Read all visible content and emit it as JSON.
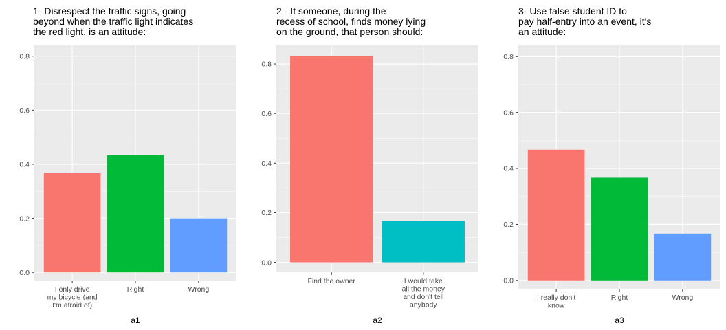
{
  "chart_data": [
    {
      "type": "bar",
      "title_lines": [
        "1- Disrespect the traffic signs, going",
        "beyond when the traffic light indicates",
        "the red light, is an attitude:"
      ],
      "xlabel": "a1",
      "ylabel": "",
      "categories": [
        [
          "I only drive",
          "my bicycle (and",
          "I'm afraid of)"
        ],
        [
          "Right"
        ],
        [
          "Wrong"
        ]
      ],
      "values": [
        0.367,
        0.433,
        0.2
      ],
      "colors": [
        "#F8766D",
        "#00BA38",
        "#619CFF"
      ],
      "ylim": [
        -0.03,
        0.84
      ],
      "yticks": [
        0.0,
        0.2,
        0.4,
        0.6,
        0.8
      ],
      "ytick_labels": [
        "0.0",
        "0.2",
        "0.4",
        "0.6",
        "0.8"
      ],
      "grid": true,
      "background": "#EBEBEB"
    },
    {
      "type": "bar",
      "title_lines": [
        "2 - If someone, during the",
        "recess of school, finds money lying",
        "on the ground, that person should:"
      ],
      "xlabel": "a2",
      "ylabel": "",
      "categories": [
        [
          "Find the owner"
        ],
        [
          "I would take",
          "all the money",
          "and don't tell",
          "anybody"
        ]
      ],
      "values": [
        0.833,
        0.167
      ],
      "colors": [
        "#F8766D",
        "#00BFC4"
      ],
      "ylim": [
        -0.04,
        0.875
      ],
      "yticks": [
        0.0,
        0.2,
        0.4,
        0.6,
        0.8
      ],
      "ytick_labels": [
        "0.0",
        "0.2",
        "0.4",
        "0.6",
        "0.8"
      ],
      "grid": true,
      "background": "#EBEBEB"
    },
    {
      "type": "bar",
      "title_lines": [
        "3- Use false student ID to",
        "pay half-entry into an event, it's",
        "an attitude:"
      ],
      "xlabel": "a3",
      "ylabel": "",
      "categories": [
        [
          "I really don't",
          "know"
        ],
        [
          "Right"
        ],
        [
          "Wrong"
        ]
      ],
      "values": [
        0.467,
        0.367,
        0.167
      ],
      "colors": [
        "#F8766D",
        "#00BA38",
        "#619CFF"
      ],
      "ylim": [
        -0.03,
        0.84
      ],
      "yticks": [
        0.0,
        0.2,
        0.4,
        0.6,
        0.8
      ],
      "ytick_labels": [
        "0.0",
        "0.2",
        "0.4",
        "0.6",
        "0.8"
      ],
      "grid": true,
      "background": "#EBEBEB"
    }
  ]
}
